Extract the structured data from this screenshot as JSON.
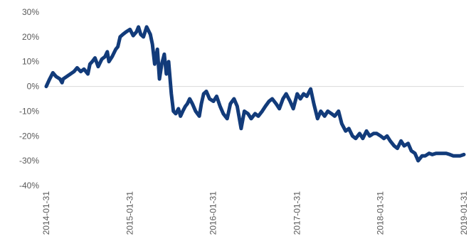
{
  "chart_data": {
    "type": "line",
    "title": "",
    "xlabel": "",
    "ylabel": "",
    "ylim": [
      -40,
      30
    ],
    "y_ticks": [
      30,
      20,
      10,
      0,
      -10,
      -20,
      -30,
      -40
    ],
    "y_tick_labels": [
      "30%",
      "20%",
      "10%",
      "0%",
      "-10%",
      "-20%",
      "-30%",
      "-40%"
    ],
    "x_tick_labels": [
      "2014-01-31",
      "2015-01-31",
      "2016-01-31",
      "2017-01-31",
      "2018-01-31",
      "2019-01-31"
    ],
    "grid": false,
    "legend": "none",
    "series": [
      {
        "color": "#123b7a",
        "x": [
          "2014-01-31",
          "2014-02-15",
          "2014-03-01",
          "2014-03-15",
          "2014-04-01",
          "2014-04-10",
          "2014-04-15",
          "2014-05-01",
          "2014-06-01",
          "2014-06-15",
          "2014-07-01",
          "2014-07-15",
          "2014-08-01",
          "2014-08-10",
          "2014-08-20",
          "2014-09-01",
          "2014-09-15",
          "2014-10-01",
          "2014-10-15",
          "2014-10-25",
          "2014-11-01",
          "2014-11-15",
          "2014-12-01",
          "2014-12-10",
          "2014-12-20",
          "2015-01-01",
          "2015-01-15",
          "2015-02-01",
          "2015-02-15",
          "2015-03-01",
          "2015-03-10",
          "2015-03-20",
          "2015-04-01",
          "2015-04-15",
          "2015-05-01",
          "2015-05-10",
          "2015-05-20",
          "2015-06-01",
          "2015-06-10",
          "2015-06-20",
          "2015-07-01",
          "2015-07-10",
          "2015-07-20",
          "2015-08-01",
          "2015-08-10",
          "2015-08-20",
          "2015-09-01",
          "2015-09-10",
          "2015-09-20",
          "2015-10-01",
          "2015-10-10",
          "2015-10-20",
          "2015-11-01",
          "2015-11-15",
          "2015-12-01",
          "2015-12-10",
          "2015-12-20",
          "2016-01-01",
          "2016-01-15",
          "2016-02-01",
          "2016-02-15",
          "2016-03-01",
          "2016-03-15",
          "2016-04-01",
          "2016-04-15",
          "2016-05-01",
          "2016-05-15",
          "2016-06-01",
          "2016-06-15",
          "2016-07-01",
          "2016-07-15",
          "2016-08-01",
          "2016-08-15",
          "2016-09-01",
          "2016-09-15",
          "2016-10-01",
          "2016-10-15",
          "2016-11-01",
          "2016-11-15",
          "2016-12-01",
          "2016-12-15",
          "2017-01-01",
          "2017-01-15",
          "2017-02-01",
          "2017-02-15",
          "2017-03-01",
          "2017-03-15",
          "2017-04-01",
          "2017-04-15",
          "2017-05-01",
          "2017-05-15",
          "2017-06-01",
          "2017-06-15",
          "2017-07-01",
          "2017-07-15",
          "2017-08-01",
          "2017-08-15",
          "2017-09-01",
          "2017-09-15",
          "2017-10-01",
          "2017-10-15",
          "2017-11-01",
          "2017-11-15",
          "2017-12-01",
          "2017-12-15",
          "2018-01-01",
          "2018-01-15",
          "2018-02-01",
          "2018-02-15",
          "2018-03-01",
          "2018-03-15",
          "2018-04-01",
          "2018-04-15",
          "2018-05-01",
          "2018-05-15",
          "2018-06-01",
          "2018-06-15",
          "2018-07-01",
          "2018-07-15",
          "2018-08-01",
          "2018-08-15",
          "2018-09-01",
          "2018-09-15",
          "2018-10-01",
          "2018-10-15",
          "2018-11-01",
          "2018-11-15",
          "2018-12-01",
          "2018-12-15",
          "2019-01-01",
          "2019-01-15",
          "2019-01-31"
        ],
        "y": [
          0,
          3,
          5.5,
          4,
          3,
          1.5,
          3,
          4,
          6,
          7.5,
          6,
          7,
          5,
          9,
          10,
          11.5,
          8,
          11,
          12,
          14,
          10,
          12,
          15,
          16,
          20,
          21,
          22,
          23,
          20.5,
          22,
          24,
          21,
          20,
          24,
          21,
          17,
          9,
          15,
          3,
          9,
          13,
          5,
          10,
          -3,
          -10,
          -11,
          -9,
          -12,
          -10,
          -8,
          -7,
          -5,
          -7,
          -10,
          -12,
          -7,
          -3,
          -2,
          -5,
          -6,
          -4,
          -8,
          -11,
          -13,
          -7,
          -5,
          -8,
          -17,
          -10,
          -11,
          -13,
          -11,
          -12,
          -10,
          -8,
          -6,
          -5,
          -7,
          -9,
          -5,
          -3,
          -6,
          -9,
          -3,
          -5,
          -3,
          -4,
          -1,
          -7,
          -13,
          -10,
          -12,
          -10,
          -11,
          -12,
          -10,
          -15,
          -18,
          -17,
          -20,
          -21,
          -19,
          -21,
          -18,
          -20,
          -19,
          -19,
          -20,
          -21,
          -20,
          -22,
          -24,
          -25,
          -22,
          -24,
          -23,
          -26,
          -27,
          -30,
          -28,
          -28,
          -27,
          -27.5,
          -27,
          -27,
          -27,
          -27,
          -27.5,
          -28,
          -28,
          -28,
          -27.5
        ]
      }
    ]
  }
}
